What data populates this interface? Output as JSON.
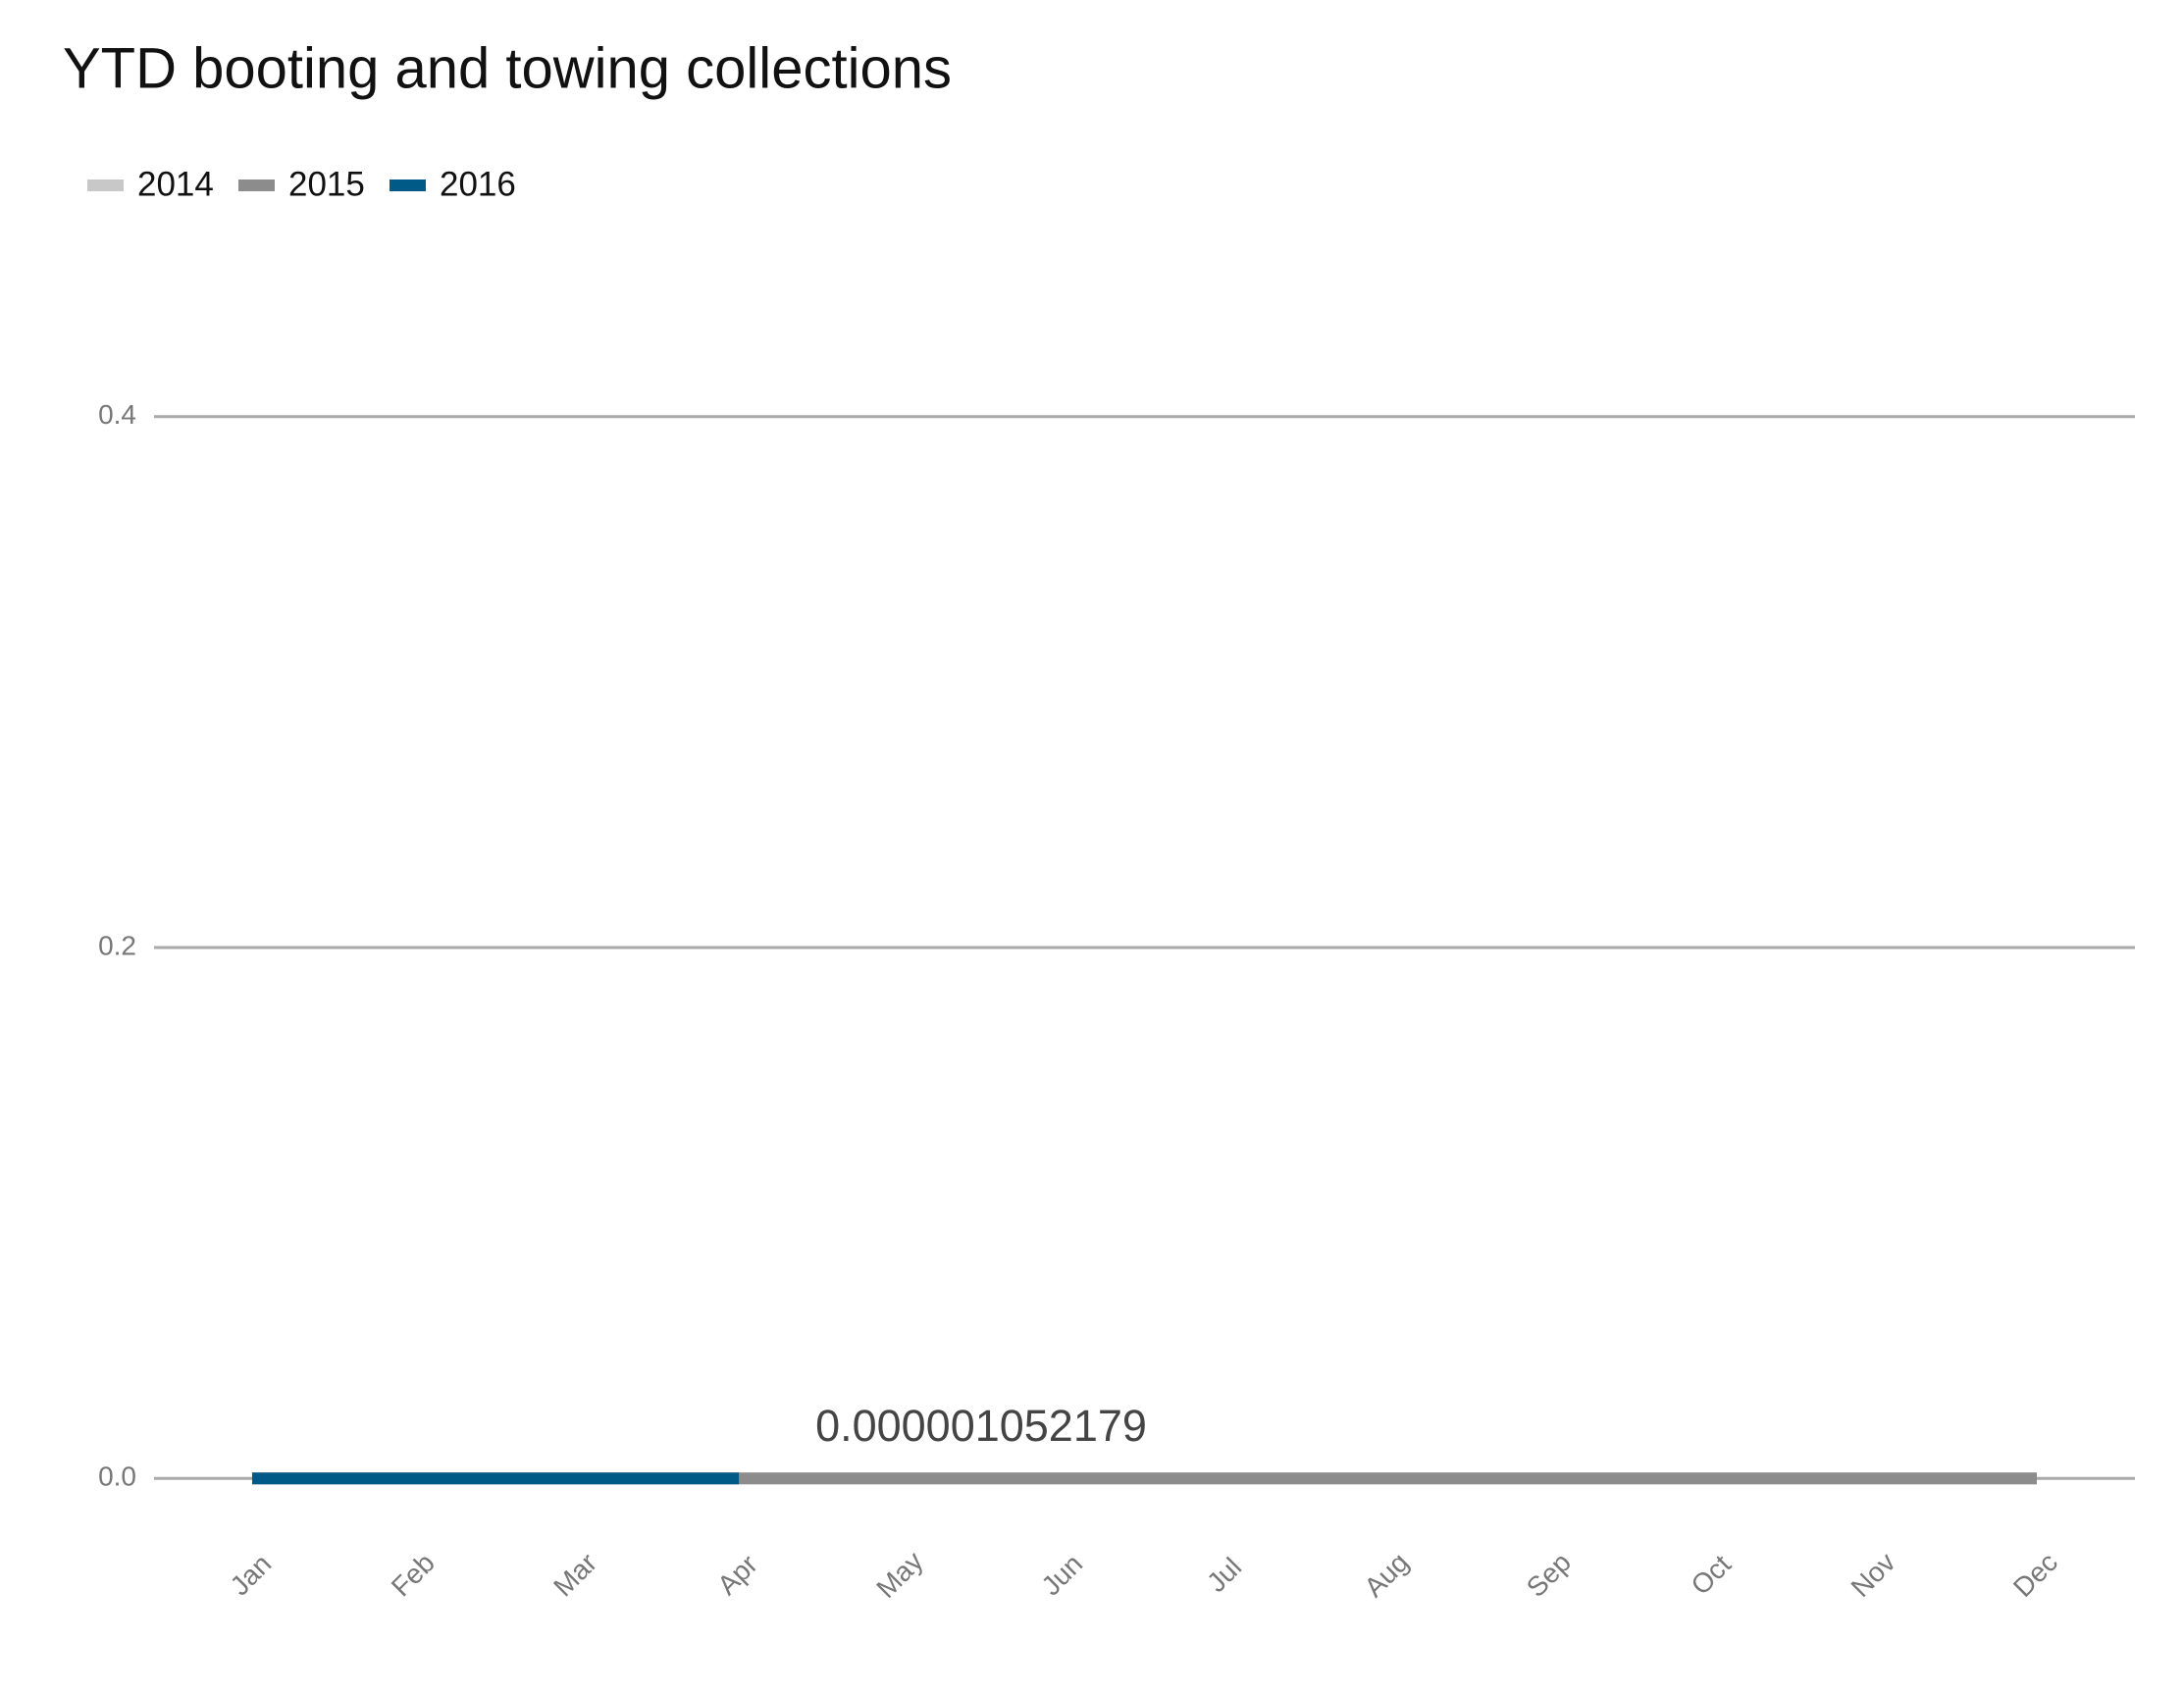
{
  "chart_data": {
    "type": "line",
    "title": "YTD booting and towing collections",
    "categories": [
      "Jan",
      "Feb",
      "Mar",
      "Apr",
      "May",
      "Jun",
      "Jul",
      "Aug",
      "Sep",
      "Oct",
      "Nov",
      "Dec"
    ],
    "series": [
      {
        "name": "2014",
        "color": "#c8c8c8",
        "values": [
          0,
          0,
          0,
          0,
          0,
          0,
          0,
          0,
          0,
          0,
          0,
          0
        ]
      },
      {
        "name": "2015",
        "color": "#8c8c8c",
        "values": [
          0,
          0,
          0,
          0,
          0,
          0,
          0,
          0,
          0,
          0,
          0,
          0
        ]
      },
      {
        "name": "2016",
        "color": "#005a87",
        "values": [
          0,
          0,
          0,
          0,
          null,
          null,
          null,
          null,
          null,
          null,
          null,
          null
        ]
      }
    ],
    "annotation": "0.000001052179",
    "ylim": [
      -0.018,
      0.452
    ],
    "yticks": [
      {
        "value": 0,
        "label": "0.0"
      },
      {
        "value": 0.2,
        "label": "0.2"
      },
      {
        "value": 0.4,
        "label": "0.4"
      }
    ],
    "grid": true,
    "legend": "top-left"
  }
}
